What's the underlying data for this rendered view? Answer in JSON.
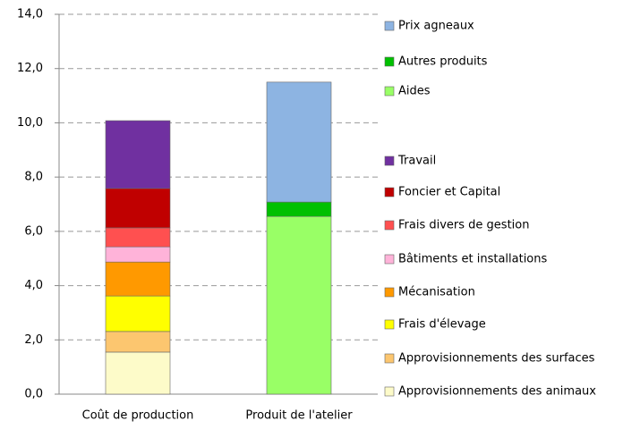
{
  "chart_data": {
    "type": "stacked-bar",
    "categories": [
      "Coût de production",
      "Produit de l'atelier"
    ],
    "series": [
      {
        "name": "Approvisionnements des animaux",
        "color": "#fdfbc9",
        "values": [
          1.55,
          null
        ]
      },
      {
        "name": "Approvisionnements des surfaces",
        "color": "#fcc66f",
        "values": [
          0.76,
          null
        ]
      },
      {
        "name": "Frais d'élevage",
        "color": "#ffff00",
        "values": [
          1.31,
          null
        ]
      },
      {
        "name": "Mécanisation",
        "color": "#ff9900",
        "values": [
          1.25,
          null
        ]
      },
      {
        "name": "Bâtiments et installations",
        "color": "#ffb3d9",
        "values": [
          0.56,
          null
        ]
      },
      {
        "name": "Frais divers de gestion",
        "color": "#ff5050",
        "values": [
          0.7,
          null
        ]
      },
      {
        "name": "Foncier et Capital",
        "color": "#c00000",
        "values": [
          1.45,
          null
        ]
      },
      {
        "name": "Travail",
        "color": "#7030a0",
        "values": [
          2.5,
          null
        ]
      },
      {
        "name": "Aides",
        "color": "#99ff66",
        "values": [
          null,
          6.55
        ]
      },
      {
        "name": "Autres produits",
        "color": "#00c000",
        "values": [
          null,
          0.53
        ]
      },
      {
        "name": "Prix agneaux",
        "color": "#8db4e2",
        "values": [
          null,
          4.42
        ]
      }
    ],
    "ylim": [
      0,
      14
    ],
    "yticks": [
      {
        "value": 0,
        "label": "0,0"
      },
      {
        "value": 2,
        "label": "2,0"
      },
      {
        "value": 4,
        "label": "4,0"
      },
      {
        "value": 6,
        "label": "6,0"
      },
      {
        "value": 8,
        "label": "8,0"
      },
      {
        "value": 10,
        "label": "10,0"
      },
      {
        "value": 12,
        "label": "12,0"
      },
      {
        "value": 14,
        "label": "14,0"
      }
    ],
    "grid": true
  }
}
